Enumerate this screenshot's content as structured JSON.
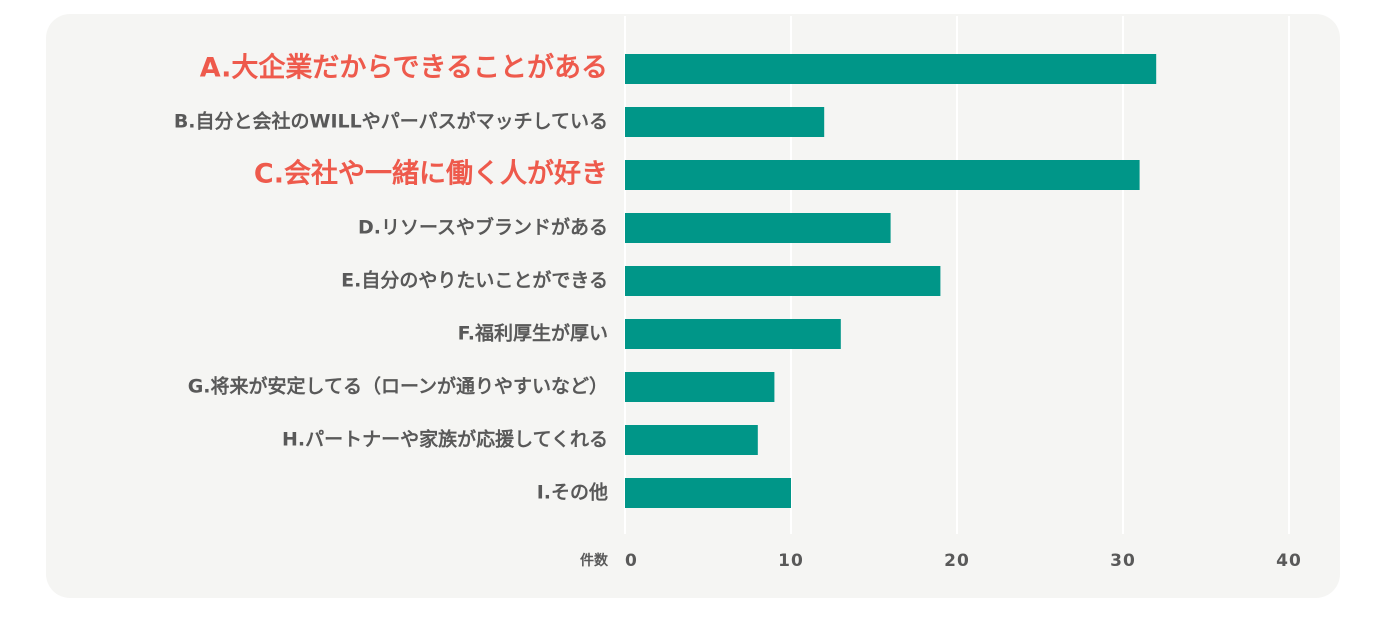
{
  "chart_data": {
    "type": "bar",
    "orientation": "horizontal",
    "categories": [
      "A.大企業だからできることがある",
      "B.自分と会社のWILLやパーパスがマッチしている",
      "C.会社や一緒に働く人が好き",
      "D.リソースやブランドがある",
      "E.自分のやりたいことができる",
      "F.福利厚生が厚い",
      "G.将来が安定してる（ローンが通りやすいなど）",
      "H.パートナーや家族が応援してくれる",
      "I.その他"
    ],
    "highlighted": [
      true,
      false,
      true,
      false,
      false,
      false,
      false,
      false,
      false
    ],
    "values": [
      32,
      12,
      31,
      16,
      19,
      13,
      9,
      8,
      10
    ],
    "xlabel": "件数",
    "xlim": [
      0,
      40
    ],
    "xticks": [
      0,
      10,
      20,
      30,
      40
    ],
    "grid": true,
    "colors": {
      "bar": "#009688",
      "highlight_label": "#ee5a4c",
      "label": "#595959",
      "background": "#f5f5f3",
      "grid": "#ffffff"
    }
  }
}
